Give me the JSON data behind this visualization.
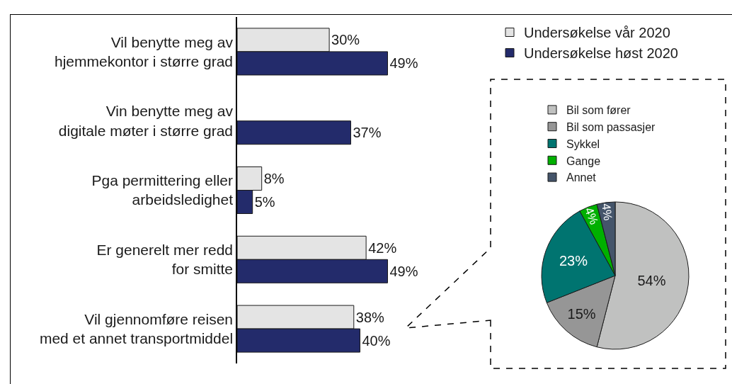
{
  "chart_data": [
    {
      "type": "bar",
      "orientation": "horizontal",
      "categories": [
        "Vil benytte meg av\nhjemmekontor i større grad",
        "Vin benytte meg av\ndigitale møter i større grad",
        "Pga permittering eller\narbeidsledighet",
        "Er generelt mer redd\nfor smitte",
        "Vil gjennomføre reisen\nmed et annet transportmiddel"
      ],
      "series": [
        {
          "name": "Undersøkelse vår 2020",
          "color": "#e4e4e4",
          "values": [
            30,
            null,
            8,
            42,
            38
          ],
          "value_labels": [
            "30%",
            null,
            "8%",
            "42%",
            "38%"
          ]
        },
        {
          "name": "Undersøkelse høst 2020",
          "color": "#232b6b",
          "values": [
            49,
            37,
            5,
            49,
            40
          ],
          "value_labels": [
            "49%",
            "37%",
            "5%",
            "49%",
            "40%"
          ]
        }
      ],
      "tick_labels": "y",
      "legend": "top right"
    },
    {
      "type": "pie",
      "categories": [
        "Bil som fører",
        "Bil som passasjer",
        "Sykkel",
        "Gange",
        "Annet"
      ],
      "values": [
        54,
        15,
        23,
        4,
        4
      ],
      "colors": [
        "#c0c1c0",
        "#969696",
        "#007470",
        "#00b000",
        "#44546a"
      ],
      "value_labels": [
        "54%",
        "15%",
        "23%",
        "4%",
        "4%"
      ],
      "legend": "top"
    }
  ]
}
